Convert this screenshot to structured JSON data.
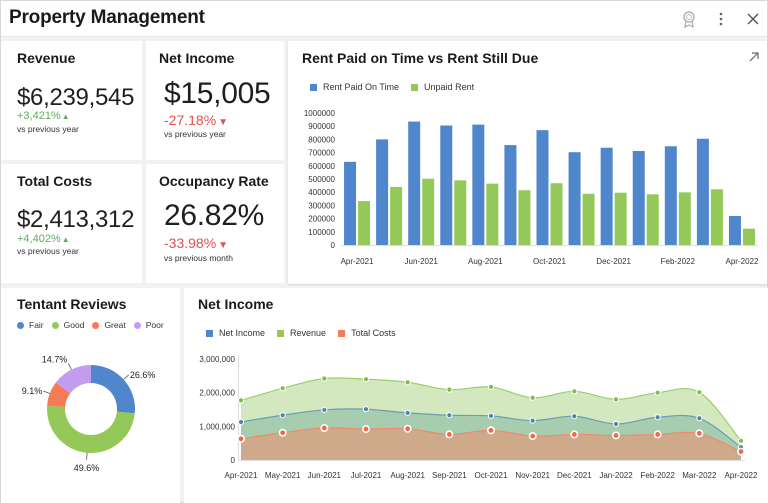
{
  "header": {
    "title": "Property Management",
    "icons": [
      "badge-icon",
      "more-vert-icon",
      "close-icon"
    ]
  },
  "kpis": {
    "revenue": {
      "title": "Revenue",
      "value": "$6,239,545",
      "delta": "+3,421%",
      "direction": "up",
      "sub": "vs previous year"
    },
    "net_income": {
      "title": "Net Income",
      "value": "$15,005",
      "delta": "-27.18%",
      "direction": "down",
      "sub": "vs previous year"
    },
    "total_costs": {
      "title": "Total Costs",
      "value": "$2,413,312",
      "delta": "+4,402%",
      "direction": "up",
      "sub": "vs previous year"
    },
    "occupancy": {
      "title": "Occupancy Rate",
      "value": "26.82%",
      "delta": "-33.98%",
      "direction": "down",
      "sub": "vs previous month"
    }
  },
  "arrows": {
    "up": "▲",
    "down": "▼"
  },
  "colors": {
    "blue": "#4f86cc",
    "green": "#94c95a",
    "orange": "#f47a58",
    "purple": "#c39cf0",
    "up": "#5bb05b",
    "down": "#e5504c"
  },
  "chart_data": [
    {
      "type": "bar",
      "title": "Rent Paid on Time vs Rent Still Due",
      "expand_icon": "expand-arrow-icon",
      "legend_position": "top-left",
      "categories": [
        "Apr-2021",
        "May-2021",
        "Jun-2021",
        "Jul-2021",
        "Aug-2021",
        "Sep-2021",
        "Oct-2021",
        "Nov-2021",
        "Dec-2021",
        "Jan-2022",
        "Feb-2022",
        "Mar-2022",
        "Apr-2022"
      ],
      "x_tick_labels": [
        "Apr-2021",
        "Jun-2021",
        "Aug-2021",
        "Oct-2021",
        "Dec-2021",
        "Feb-2022",
        "Apr-2022"
      ],
      "series": [
        {
          "name": "Rent Paid On Time",
          "color": "#4f86cc",
          "values": [
            630000,
            800000,
            935000,
            905000,
            912000,
            757000,
            870000,
            703000,
            737000,
            712000,
            748000,
            805000,
            220000
          ]
        },
        {
          "name": "Unpaid Rent",
          "color": "#94c95a",
          "values": [
            333000,
            440000,
            502000,
            490000,
            465000,
            415000,
            468000,
            388000,
            396000,
            384000,
            399000,
            422000,
            124000
          ]
        }
      ],
      "ylim": [
        0,
        1000000
      ],
      "y_ticks": [
        "0",
        "100000",
        "200000",
        "300000",
        "400000",
        "500000",
        "600000",
        "700000",
        "800000",
        "900000",
        "1000000"
      ],
      "xlabel": "",
      "ylabel": "",
      "grid": false
    },
    {
      "type": "pie",
      "title": "Tentant Reviews",
      "donut": true,
      "legend_position": "top-left",
      "categories": [
        "Fair",
        "Good",
        "Great",
        "Poor"
      ],
      "values": [
        26.6,
        49.6,
        9.1,
        14.7
      ],
      "labels": [
        "26.6%",
        "49.6%",
        "9.1%",
        "14.7%"
      ],
      "colors": [
        "#4f86cc",
        "#94c95a",
        "#f47a58",
        "#c39cf0"
      ]
    },
    {
      "type": "area",
      "title": "Net Income",
      "stacked": false,
      "legend_position": "top-left",
      "categories": [
        "Apr-2021",
        "May-2021",
        "Jun-2021",
        "Jul-2021",
        "Aug-2021",
        "Sep-2021",
        "Oct-2021",
        "Nov-2021",
        "Dec-2021",
        "Jan-2022",
        "Feb-2022",
        "Mar-2022",
        "Apr-2022"
      ],
      "series": [
        {
          "name": "Net Income",
          "color": "#4f86cc",
          "values": [
            1130000,
            1330000,
            1490000,
            1510000,
            1400000,
            1330000,
            1310000,
            1170000,
            1300000,
            1070000,
            1270000,
            1240000,
            380000
          ]
        },
        {
          "name": "Revenue",
          "color": "#94c95a",
          "values": [
            1770000,
            2130000,
            2420000,
            2400000,
            2310000,
            2090000,
            2170000,
            1850000,
            2040000,
            1800000,
            2000000,
            2010000,
            570000
          ]
        },
        {
          "name": "Total Costs",
          "color": "#f47a58",
          "values": [
            630000,
            810000,
            950000,
            920000,
            930000,
            760000,
            880000,
            710000,
            760000,
            730000,
            760000,
            790000,
            250000
          ]
        }
      ],
      "ylim": [
        0,
        3000000
      ],
      "y_ticks": [
        "0",
        "1,000,000",
        "2,000,000",
        "3,000,000"
      ],
      "xlabel": "",
      "ylabel": "",
      "grid": false
    }
  ]
}
